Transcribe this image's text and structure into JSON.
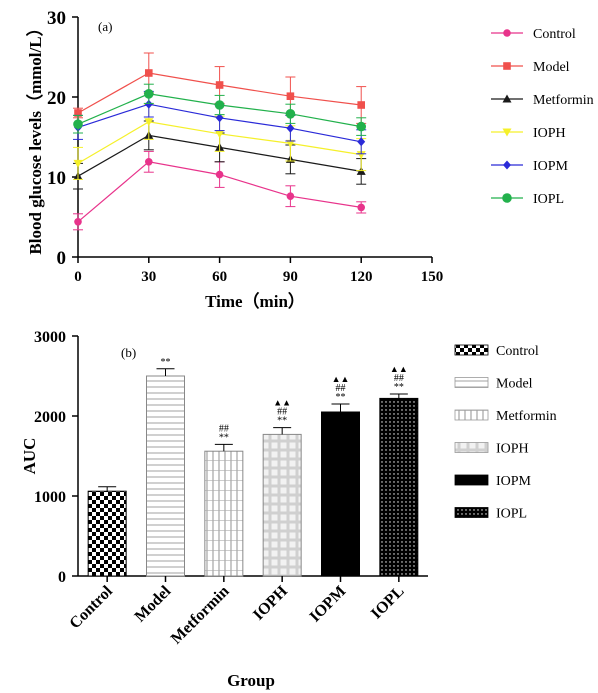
{
  "chart_data": [
    {
      "type": "line",
      "panel_label": "(a)",
      "xlabel": "Time（min）",
      "ylabel": "Blood glucose levels（mmol/L）",
      "xlim": [
        0,
        150
      ],
      "ylim": [
        0,
        30
      ],
      "xticks": [
        0,
        30,
        60,
        90,
        120,
        150
      ],
      "yticks": [
        0,
        10,
        20,
        30
      ],
      "grid": false,
      "legend": "right",
      "x": [
        0,
        30,
        60,
        90,
        120
      ],
      "series": [
        {
          "name": "Control",
          "color": "#e8338b",
          "marker": "circle",
          "values": [
            4.4,
            11.9,
            10.3,
            7.6,
            6.2
          ],
          "errors": [
            1.0,
            1.3,
            1.6,
            1.3,
            0.7
          ]
        },
        {
          "name": "Model",
          "color": "#f0504c",
          "marker": "square",
          "values": [
            18.0,
            23.0,
            21.5,
            20.1,
            19.0
          ],
          "errors": [
            0.6,
            2.5,
            2.3,
            2.4,
            2.3
          ]
        },
        {
          "name": "Metformin",
          "color": "#1a1a1a",
          "marker": "triangle-up",
          "values": [
            10.1,
            15.2,
            13.7,
            12.2,
            10.7
          ],
          "errors": [
            1.6,
            1.8,
            1.8,
            1.8,
            1.6
          ]
        },
        {
          "name": "IOPH",
          "color": "#f5f02a",
          "marker": "triangle-down",
          "values": [
            11.7,
            16.9,
            15.4,
            14.2,
            12.8
          ],
          "errors": [
            2.0,
            2.2,
            2.2,
            2.2,
            2.0
          ]
        },
        {
          "name": "IOPM",
          "color": "#2a2ad8",
          "marker": "diamond",
          "values": [
            16.2,
            19.1,
            17.4,
            16.1,
            14.4
          ],
          "errors": [
            1.5,
            1.6,
            1.6,
            1.6,
            1.5
          ]
        },
        {
          "name": "IOPL",
          "color": "#22b14c",
          "marker": "big-circle",
          "values": [
            16.6,
            20.4,
            19.0,
            17.9,
            16.3
          ],
          "errors": [
            1.1,
            1.2,
            1.2,
            1.2,
            1.1
          ]
        }
      ]
    },
    {
      "type": "bar",
      "panel_label": "(b)",
      "xlabel": "Group",
      "ylabel": "AUC",
      "ylim": [
        0,
        3000
      ],
      "yticks": [
        0,
        1000,
        2000,
        3000
      ],
      "grid": false,
      "legend": "right",
      "categories": [
        "Control",
        "Model",
        "Metformin",
        "IOPH",
        "IOPM",
        "IOPL"
      ],
      "values": [
        1060,
        2500,
        1560,
        1770,
        2050,
        2220
      ],
      "errors": [
        55,
        90,
        85,
        85,
        100,
        55
      ],
      "patterns": [
        "checker",
        "hlines",
        "vhatch",
        "lightgrid",
        "solid",
        "dots"
      ],
      "annotations": [
        [],
        [
          "**"
        ],
        [
          "##",
          "**"
        ],
        [
          "▲▲",
          "##",
          "**"
        ],
        [
          "▲▲",
          "##",
          "**"
        ],
        [
          "▲▲",
          "##",
          "**"
        ]
      ]
    }
  ]
}
